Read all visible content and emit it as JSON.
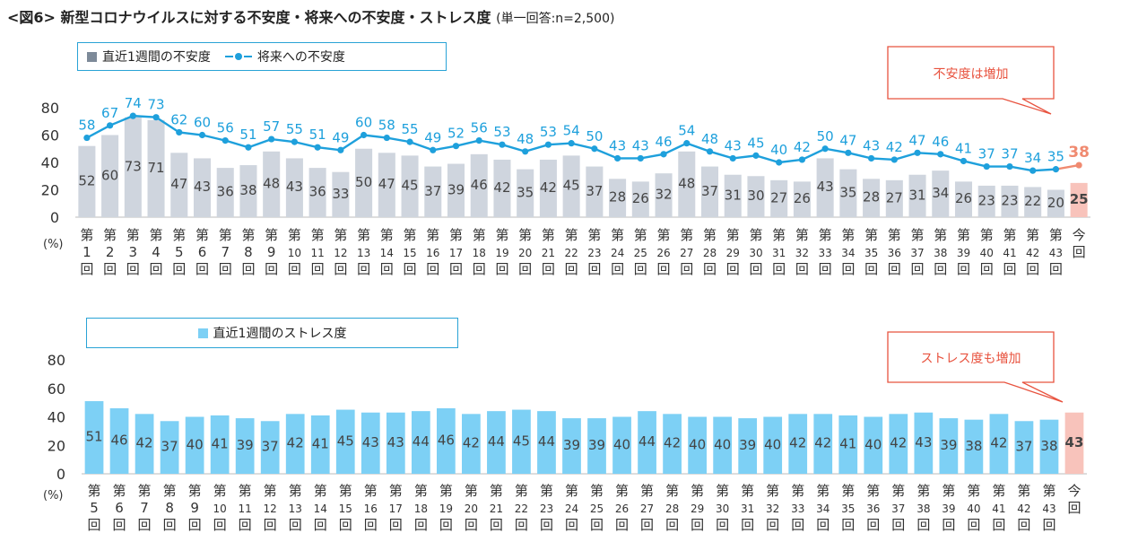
{
  "title": "<図6> 新型コロナウイルスに対する不安度・将来への不安度・ストレス度",
  "subtitle": "(単一回答:n=2,500)",
  "colors": {
    "bar1": "#cfd5de",
    "bar2": "#7dd0f5",
    "highlight": "#f8c3bb",
    "line": "#1ea0dc",
    "line_highlight": "#f08a70",
    "value_highlight": "#f08a70",
    "callout": "#e8533f"
  },
  "callouts": {
    "top": "不安度は増加",
    "bottom": "ストレス度も増加"
  },
  "chart_data": [
    {
      "type": "bar+line",
      "legend": {
        "bar": "直近1週間の不安度",
        "line": "将来への不安度"
      },
      "unit_label": "(%)",
      "ylim": [
        0,
        80
      ],
      "yticks": [
        0,
        20,
        40,
        60,
        80
      ],
      "categories": [
        "第1回",
        "第2回",
        "第3回",
        "第4回",
        "第5回",
        "第6回",
        "第7回",
        "第8回",
        "第9回",
        "第10回",
        "第11回",
        "第12回",
        "第13回",
        "第14回",
        "第15回",
        "第16回",
        "第17回",
        "第18回",
        "第19回",
        "第20回",
        "第21回",
        "第22回",
        "第23回",
        "第24回",
        "第25回",
        "第26回",
        "第27回",
        "第28回",
        "第29回",
        "第30回",
        "第31回",
        "第32回",
        "第33回",
        "第34回",
        "第35回",
        "第36回",
        "第37回",
        "第38回",
        "第39回",
        "第40回",
        "第41回",
        "第42回",
        "第43回",
        "今回"
      ],
      "series": [
        {
          "name": "直近1週間の不安度",
          "kind": "bar",
          "values": [
            52,
            60,
            73,
            71,
            47,
            43,
            36,
            38,
            48,
            43,
            36,
            33,
            50,
            47,
            45,
            37,
            39,
            46,
            42,
            35,
            42,
            45,
            37,
            28,
            26,
            32,
            48,
            37,
            31,
            30,
            27,
            26,
            43,
            35,
            28,
            27,
            31,
            34,
            26,
            23,
            23,
            22,
            20,
            25
          ]
        },
        {
          "name": "将来への不安度",
          "kind": "line",
          "values": [
            58,
            67,
            74,
            73,
            62,
            60,
            56,
            51,
            57,
            55,
            51,
            49,
            60,
            58,
            55,
            49,
            52,
            56,
            53,
            48,
            53,
            54,
            50,
            43,
            43,
            46,
            54,
            48,
            43,
            45,
            40,
            42,
            50,
            47,
            43,
            42,
            47,
            46,
            41,
            37,
            37,
            34,
            35,
            38
          ]
        }
      ]
    },
    {
      "type": "bar",
      "legend": {
        "bar": "直近1週間のストレス度"
      },
      "unit_label": "(%)",
      "ylim": [
        0,
        80
      ],
      "yticks": [
        0,
        20,
        40,
        60,
        80
      ],
      "categories": [
        "第5回",
        "第6回",
        "第7回",
        "第8回",
        "第9回",
        "第10回",
        "第11回",
        "第12回",
        "第13回",
        "第14回",
        "第15回",
        "第16回",
        "第17回",
        "第18回",
        "第19回",
        "第20回",
        "第21回",
        "第22回",
        "第23回",
        "第24回",
        "第25回",
        "第26回",
        "第27回",
        "第28回",
        "第29回",
        "第30回",
        "第31回",
        "第32回",
        "第33回",
        "第34回",
        "第35回",
        "第36回",
        "第37回",
        "第38回",
        "第39回",
        "第40回",
        "第41回",
        "第42回",
        "第43回",
        "今回"
      ],
      "series": [
        {
          "name": "直近1週間のストレス度",
          "kind": "bar",
          "values": [
            51,
            46,
            42,
            37,
            40,
            41,
            39,
            37,
            42,
            41,
            45,
            43,
            43,
            44,
            46,
            42,
            44,
            45,
            44,
            39,
            39,
            40,
            44,
            42,
            40,
            40,
            39,
            40,
            42,
            42,
            41,
            40,
            42,
            43,
            39,
            38,
            42,
            37,
            38,
            43
          ]
        }
      ]
    }
  ]
}
